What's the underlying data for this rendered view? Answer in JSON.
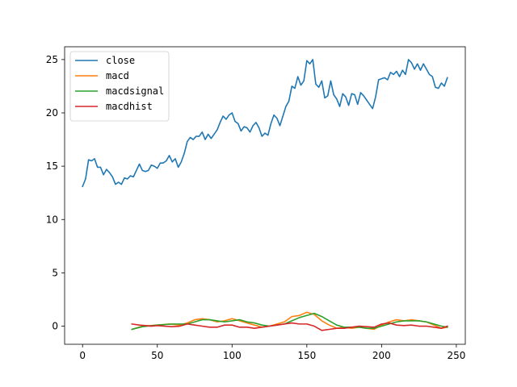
{
  "chart_data": {
    "type": "line",
    "title": "",
    "xlabel": "",
    "ylabel": "",
    "xlim": [
      -12,
      256
    ],
    "ylim": [
      -1.7,
      26.2
    ],
    "xticks": [
      0,
      50,
      100,
      150,
      200,
      250
    ],
    "yticks": [
      0,
      5,
      10,
      15,
      20,
      25
    ],
    "grid": false,
    "legend_position": "top-left",
    "series": [
      {
        "name": "close",
        "color": "#1f77b4",
        "points": [
          [
            0,
            13.1
          ],
          [
            2,
            13.8
          ],
          [
            4,
            15.6
          ],
          [
            6,
            15.5
          ],
          [
            8,
            15.7
          ],
          [
            10,
            14.9
          ],
          [
            12,
            14.9
          ],
          [
            14,
            14.2
          ],
          [
            16,
            14.7
          ],
          [
            18,
            14.4
          ],
          [
            20,
            14.0
          ],
          [
            22,
            13.3
          ],
          [
            24,
            13.5
          ],
          [
            26,
            13.3
          ],
          [
            28,
            13.9
          ],
          [
            30,
            13.8
          ],
          [
            32,
            14.1
          ],
          [
            34,
            14.0
          ],
          [
            36,
            14.6
          ],
          [
            38,
            15.2
          ],
          [
            40,
            14.6
          ],
          [
            42,
            14.5
          ],
          [
            44,
            14.6
          ],
          [
            46,
            15.1
          ],
          [
            48,
            15.0
          ],
          [
            50,
            14.8
          ],
          [
            52,
            15.3
          ],
          [
            54,
            15.3
          ],
          [
            56,
            15.5
          ],
          [
            58,
            16.0
          ],
          [
            60,
            15.4
          ],
          [
            62,
            15.7
          ],
          [
            64,
            14.9
          ],
          [
            66,
            15.4
          ],
          [
            68,
            16.2
          ],
          [
            70,
            17.3
          ],
          [
            72,
            17.7
          ],
          [
            74,
            17.5
          ],
          [
            76,
            17.8
          ],
          [
            78,
            17.8
          ],
          [
            80,
            18.2
          ],
          [
            82,
            17.5
          ],
          [
            84,
            18.0
          ],
          [
            86,
            17.6
          ],
          [
            88,
            18.0
          ],
          [
            90,
            18.4
          ],
          [
            92,
            19.1
          ],
          [
            94,
            19.7
          ],
          [
            96,
            19.4
          ],
          [
            98,
            19.8
          ],
          [
            100,
            20.0
          ],
          [
            102,
            19.2
          ],
          [
            104,
            19.0
          ],
          [
            106,
            18.3
          ],
          [
            108,
            18.7
          ],
          [
            110,
            18.6
          ],
          [
            112,
            18.2
          ],
          [
            114,
            18.8
          ],
          [
            116,
            19.1
          ],
          [
            118,
            18.6
          ],
          [
            120,
            17.8
          ],
          [
            122,
            18.1
          ],
          [
            124,
            17.9
          ],
          [
            126,
            19.0
          ],
          [
            128,
            19.8
          ],
          [
            130,
            19.5
          ],
          [
            132,
            18.8
          ],
          [
            134,
            19.7
          ],
          [
            136,
            20.6
          ],
          [
            138,
            21.1
          ],
          [
            140,
            22.5
          ],
          [
            142,
            22.3
          ],
          [
            144,
            23.4
          ],
          [
            146,
            22.6
          ],
          [
            148,
            23.0
          ],
          [
            150,
            24.9
          ],
          [
            152,
            24.6
          ],
          [
            154,
            25.0
          ],
          [
            156,
            22.7
          ],
          [
            158,
            22.4
          ],
          [
            160,
            23.0
          ],
          [
            162,
            21.4
          ],
          [
            164,
            21.6
          ],
          [
            166,
            23.0
          ],
          [
            168,
            21.7
          ],
          [
            170,
            21.3
          ],
          [
            172,
            20.6
          ],
          [
            174,
            21.8
          ],
          [
            176,
            21.5
          ],
          [
            178,
            20.7
          ],
          [
            180,
            21.8
          ],
          [
            182,
            21.7
          ],
          [
            184,
            20.8
          ],
          [
            186,
            21.9
          ],
          [
            188,
            21.6
          ],
          [
            190,
            21.2
          ],
          [
            192,
            20.8
          ],
          [
            194,
            20.4
          ],
          [
            196,
            21.5
          ],
          [
            198,
            23.1
          ],
          [
            200,
            23.2
          ],
          [
            202,
            23.3
          ],
          [
            204,
            23.1
          ],
          [
            206,
            23.8
          ],
          [
            208,
            23.6
          ],
          [
            210,
            23.9
          ],
          [
            212,
            23.4
          ],
          [
            214,
            24.0
          ],
          [
            216,
            23.6
          ],
          [
            218,
            25.0
          ],
          [
            220,
            24.7
          ],
          [
            222,
            24.1
          ],
          [
            224,
            24.6
          ],
          [
            226,
            24.0
          ],
          [
            228,
            24.6
          ],
          [
            230,
            24.1
          ],
          [
            232,
            23.6
          ],
          [
            234,
            23.4
          ],
          [
            236,
            22.4
          ],
          [
            238,
            22.3
          ],
          [
            240,
            22.8
          ],
          [
            242,
            22.5
          ],
          [
            244,
            23.3
          ]
        ]
      },
      {
        "name": "macd",
        "color": "#ff7f0e",
        "points": [
          [
            33,
            -0.3
          ],
          [
            40,
            0.0
          ],
          [
            50,
            0.1
          ],
          [
            58,
            0.2
          ],
          [
            65,
            0.1
          ],
          [
            70,
            0.3
          ],
          [
            75,
            0.6
          ],
          [
            80,
            0.7
          ],
          [
            85,
            0.6
          ],
          [
            90,
            0.4
          ],
          [
            95,
            0.5
          ],
          [
            100,
            0.7
          ],
          [
            105,
            0.5
          ],
          [
            110,
            0.3
          ],
          [
            115,
            0.1
          ],
          [
            120,
            -0.1
          ],
          [
            125,
            0.0
          ],
          [
            130,
            0.2
          ],
          [
            135,
            0.4
          ],
          [
            140,
            0.9
          ],
          [
            145,
            1.0
          ],
          [
            150,
            1.3
          ],
          [
            155,
            1.1
          ],
          [
            160,
            0.5
          ],
          [
            165,
            0.1
          ],
          [
            170,
            -0.2
          ],
          [
            175,
            -0.1
          ],
          [
            180,
            -0.2
          ],
          [
            185,
            -0.1
          ],
          [
            190,
            -0.2
          ],
          [
            195,
            -0.3
          ],
          [
            200,
            0.1
          ],
          [
            205,
            0.4
          ],
          [
            210,
            0.6
          ],
          [
            215,
            0.5
          ],
          [
            220,
            0.6
          ],
          [
            225,
            0.5
          ],
          [
            230,
            0.4
          ],
          [
            235,
            0.1
          ],
          [
            240,
            -0.2
          ],
          [
            244,
            -0.1
          ]
        ]
      },
      {
        "name": "macdsignal",
        "color": "#2ca02c",
        "points": [
          [
            33,
            -0.3
          ],
          [
            40,
            -0.05
          ],
          [
            50,
            0.1
          ],
          [
            60,
            0.2
          ],
          [
            70,
            0.2
          ],
          [
            75,
            0.4
          ],
          [
            80,
            0.6
          ],
          [
            85,
            0.6
          ],
          [
            90,
            0.5
          ],
          [
            95,
            0.4
          ],
          [
            100,
            0.5
          ],
          [
            105,
            0.6
          ],
          [
            110,
            0.4
          ],
          [
            115,
            0.3
          ],
          [
            120,
            0.1
          ],
          [
            125,
            0.0
          ],
          [
            130,
            0.1
          ],
          [
            135,
            0.2
          ],
          [
            140,
            0.5
          ],
          [
            145,
            0.8
          ],
          [
            150,
            1.0
          ],
          [
            155,
            1.2
          ],
          [
            160,
            0.9
          ],
          [
            165,
            0.5
          ],
          [
            170,
            0.1
          ],
          [
            175,
            -0.1
          ],
          [
            180,
            -0.1
          ],
          [
            185,
            -0.1
          ],
          [
            190,
            -0.2
          ],
          [
            195,
            -0.2
          ],
          [
            200,
            0.0
          ],
          [
            205,
            0.2
          ],
          [
            210,
            0.4
          ],
          [
            215,
            0.5
          ],
          [
            220,
            0.5
          ],
          [
            225,
            0.5
          ],
          [
            230,
            0.4
          ],
          [
            235,
            0.2
          ],
          [
            240,
            0.0
          ],
          [
            244,
            -0.1
          ]
        ]
      },
      {
        "name": "macdhist",
        "color": "#d62728",
        "points": [
          [
            33,
            0.2
          ],
          [
            38,
            0.1
          ],
          [
            42,
            0.05
          ],
          [
            46,
            0.0
          ],
          [
            50,
            0.05
          ],
          [
            55,
            0.0
          ],
          [
            60,
            -0.05
          ],
          [
            65,
            0.0
          ],
          [
            70,
            0.2
          ],
          [
            75,
            0.1
          ],
          [
            80,
            0.0
          ],
          [
            85,
            -0.1
          ],
          [
            90,
            -0.1
          ],
          [
            95,
            0.1
          ],
          [
            100,
            0.1
          ],
          [
            105,
            -0.1
          ],
          [
            110,
            -0.1
          ],
          [
            115,
            -0.2
          ],
          [
            120,
            -0.1
          ],
          [
            125,
            0.0
          ],
          [
            130,
            0.1
          ],
          [
            135,
            0.2
          ],
          [
            140,
            0.3
          ],
          [
            145,
            0.2
          ],
          [
            150,
            0.2
          ],
          [
            155,
            0.0
          ],
          [
            160,
            -0.4
          ],
          [
            165,
            -0.3
          ],
          [
            170,
            -0.2
          ],
          [
            175,
            -0.2
          ],
          [
            180,
            -0.1
          ],
          [
            185,
            0.0
          ],
          [
            190,
            -0.05
          ],
          [
            195,
            -0.1
          ],
          [
            200,
            0.2
          ],
          [
            205,
            0.3
          ],
          [
            210,
            0.1
          ],
          [
            215,
            0.05
          ],
          [
            220,
            0.1
          ],
          [
            225,
            0.0
          ],
          [
            230,
            0.0
          ],
          [
            235,
            -0.1
          ],
          [
            240,
            -0.2
          ],
          [
            244,
            0.0
          ]
        ]
      }
    ]
  }
}
